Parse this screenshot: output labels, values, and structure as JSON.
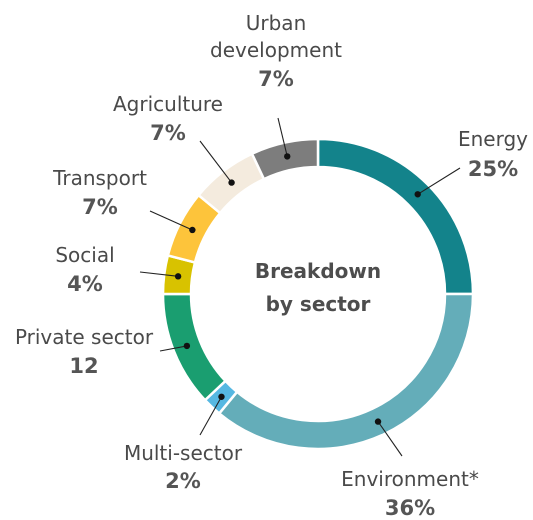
{
  "chart_data": {
    "type": "pie",
    "subtype": "donut",
    "center_title": [
      "Breakdown",
      "by sector"
    ],
    "legend": "none",
    "slices": [
      {
        "label": "Energy",
        "value_label": "25%",
        "value": 25,
        "color": "#13838b"
      },
      {
        "label": "Environment*",
        "value_label": "36%",
        "value": 36,
        "color": "#64adb9"
      },
      {
        "label": "Multi-sector",
        "value_label": "2%",
        "value": 2,
        "color": "#56b8e2"
      },
      {
        "label": "Private sector",
        "value_label": "12",
        "value": 12,
        "color": "#1a9e70"
      },
      {
        "label": "Social",
        "value_label": "4%",
        "value": 4,
        "color": "#d8c200"
      },
      {
        "label": "Transport",
        "value_label": "7%",
        "value": 7,
        "color": "#fdc43b"
      },
      {
        "label": "Agriculture",
        "value_label": "7%",
        "value": 7,
        "color": "#f4ebde"
      },
      {
        "label": "Urban development",
        "value_label": "7%",
        "value": 7,
        "color": "#7d7d7d"
      }
    ]
  }
}
